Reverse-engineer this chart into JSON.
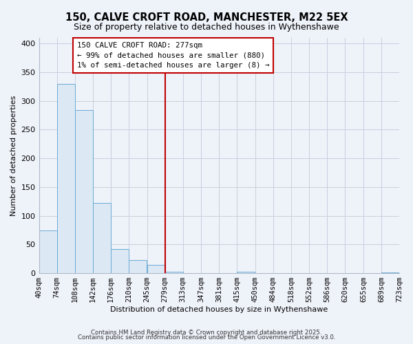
{
  "title1": "150, CALVE CROFT ROAD, MANCHESTER, M22 5EX",
  "title2": "Size of property relative to detached houses in Wythenshawe",
  "xlabel": "Distribution of detached houses by size in Wythenshawe",
  "ylabel": "Number of detached properties",
  "bar_edges": [
    40,
    74,
    108,
    142,
    176,
    210,
    245,
    279,
    313,
    347,
    381,
    415,
    450,
    484,
    518,
    552,
    586,
    620,
    655,
    689,
    723
  ],
  "bar_heights": [
    75,
    330,
    284,
    122,
    42,
    23,
    14,
    3,
    0,
    0,
    0,
    3,
    0,
    0,
    0,
    0,
    0,
    0,
    0,
    1
  ],
  "bar_color": "#dce9f5",
  "bar_edge_color": "#6aaad4",
  "vline_x": 279,
  "vline_color": "#c00000",
  "annotation_title": "150 CALVE CROFT ROAD: 277sqm",
  "annotation_line1": "← 99% of detached houses are smaller (880)",
  "annotation_line2": "1% of semi-detached houses are larger (8) →",
  "annotation_box_color": "#ffffff",
  "annotation_box_edge_color": "#c00000",
  "ylim": [
    0,
    410
  ],
  "yticks": [
    0,
    50,
    100,
    150,
    200,
    250,
    300,
    350,
    400
  ],
  "tick_labels": [
    "40sqm",
    "74sqm",
    "108sqm",
    "142sqm",
    "176sqm",
    "210sqm",
    "245sqm",
    "279sqm",
    "313sqm",
    "347sqm",
    "381sqm",
    "415sqm",
    "450sqm",
    "484sqm",
    "518sqm",
    "552sqm",
    "586sqm",
    "620sqm",
    "655sqm",
    "689sqm",
    "723sqm"
  ],
  "footer1": "Contains HM Land Registry data © Crown copyright and database right 2025.",
  "footer2": "Contains public sector information licensed under the Open Government Licence v3.0.",
  "bg_color": "#eef2f9",
  "grid_color": "#c8d0de",
  "title_fontsize": 10.5,
  "subtitle_fontsize": 9,
  "axis_label_fontsize": 8,
  "tick_fontsize": 7.5,
  "footer_fontsize": 6.2,
  "annot_fontsize": 7.8
}
